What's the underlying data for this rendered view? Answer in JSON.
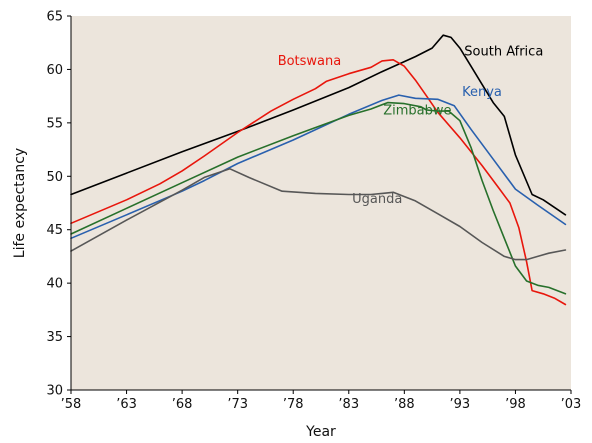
{
  "chart_data": {
    "type": "line",
    "title": "",
    "xlabel": "Year",
    "ylabel": "Life expectancy",
    "xlim": [
      1958,
      2003
    ],
    "ylim": [
      30,
      65
    ],
    "x_ticks": [
      1958,
      1963,
      1968,
      1973,
      1978,
      1983,
      1988,
      1993,
      1998,
      2003
    ],
    "x_tick_labels": [
      "’58",
      "’63",
      "’68",
      "’73",
      "’78",
      "’83",
      "’88",
      "’93",
      "’98",
      "’03"
    ],
    "y_ticks": [
      30,
      35,
      40,
      45,
      50,
      55,
      60,
      65
    ],
    "y_tick_labels": [
      "30",
      "35",
      "40",
      "45",
      "50",
      "55",
      "60",
      "65"
    ],
    "grid": false,
    "legend": "inline labels",
    "plot_background": "#ece5dc",
    "series": [
      {
        "name": "South Africa",
        "color": "#000000",
        "label_at": [
          1993.4,
          61.3
        ],
        "x": [
          1958,
          1963,
          1968,
          1973,
          1978,
          1983,
          1986,
          1989,
          1990.5,
          1991.5,
          1992.2,
          1993,
          1994,
          1995,
          1996,
          1997,
          1998,
          1999.5,
          2000.5,
          2001.5,
          2002.5
        ],
        "y": [
          48.3,
          50.3,
          52.3,
          54.2,
          56.2,
          58.3,
          59.8,
          61.2,
          62.0,
          63.2,
          63.0,
          62.0,
          60.3,
          58.6,
          56.9,
          55.6,
          52.0,
          48.3,
          47.8,
          47.1,
          46.4
        ]
      },
      {
        "name": "Botswana",
        "color": "#e8160c",
        "label_at": [
          1976.6,
          60.4
        ],
        "x": [
          1958,
          1963,
          1966,
          1968,
          1970,
          1973,
          1976,
          1978,
          1980,
          1981,
          1983,
          1985,
          1986,
          1987,
          1988,
          1989,
          1990,
          1991,
          1993,
          1995,
          1996.5,
          1997.5,
          1998.3,
          1999,
          1999.5,
          2000.5,
          2001.5,
          2002.5
        ],
        "y": [
          45.6,
          47.8,
          49.3,
          50.5,
          51.9,
          54.1,
          56.1,
          57.2,
          58.2,
          58.9,
          59.6,
          60.2,
          60.8,
          60.9,
          60.3,
          59.0,
          57.5,
          56.0,
          53.6,
          51.0,
          48.9,
          47.5,
          45.2,
          42.0,
          39.3,
          39.0,
          38.6,
          38.0
        ]
      },
      {
        "name": "Kenya",
        "color": "#2960ae",
        "label_at": [
          1993.2,
          57.5
        ],
        "x": [
          1958,
          1963,
          1968,
          1970,
          1973,
          1978,
          1983,
          1986,
          1987.5,
          1989,
          1991,
          1992.5,
          1994,
          1996,
          1998,
          2000,
          2002.5
        ],
        "y": [
          44.2,
          46.4,
          48.6,
          49.6,
          51.2,
          53.4,
          55.8,
          57.1,
          57.6,
          57.3,
          57.2,
          56.6,
          54.4,
          51.6,
          48.8,
          47.3,
          45.5
        ]
      },
      {
        "name": "Zimbabwe",
        "color": "#27702b",
        "label_at": [
          1986.1,
          55.8
        ],
        "x": [
          1958,
          1963,
          1968,
          1973,
          1978,
          1983,
          1985,
          1986.5,
          1988,
          1989.5,
          1990,
          1991,
          1992,
          1993,
          1994,
          1995,
          1996,
          1997,
          1998,
          1999,
          2000,
          2001,
          2002.5
        ],
        "y": [
          44.6,
          47.0,
          49.4,
          51.8,
          53.8,
          55.7,
          56.3,
          56.9,
          56.8,
          56.5,
          56.2,
          56.1,
          56.1,
          55.2,
          52.7,
          49.6,
          46.8,
          44.2,
          41.6,
          40.2,
          39.8,
          39.6,
          39.0
        ]
      },
      {
        "name": "Uganda",
        "color": "#575757",
        "label_at": [
          1983.3,
          47.5
        ],
        "x": [
          1958,
          1963,
          1968,
          1970,
          1972.3,
          1974,
          1977,
          1980,
          1983,
          1985,
          1987,
          1989,
          1991,
          1993,
          1995,
          1997,
          1998,
          1999,
          2000,
          2001,
          2002.5
        ],
        "y": [
          43.0,
          45.9,
          48.7,
          49.9,
          50.7,
          49.9,
          48.6,
          48.4,
          48.3,
          48.3,
          48.5,
          47.7,
          46.5,
          45.3,
          43.8,
          42.5,
          42.2,
          42.2,
          42.5,
          42.8,
          43.1
        ]
      }
    ]
  }
}
